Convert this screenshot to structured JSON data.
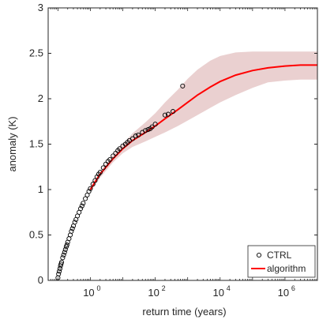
{
  "chart_data": {
    "type": "scatter",
    "title": "",
    "xlabel": "return time (years)",
    "ylabel": "anomaly (K)",
    "x_scale": "log",
    "xlim": [
      0.05,
      10000000.0
    ],
    "ylim": [
      0,
      3
    ],
    "x_ticks": [
      {
        "value": 1,
        "base": "10",
        "exp": "0"
      },
      {
        "value": 100,
        "base": "10",
        "exp": "2"
      },
      {
        "value": 10000,
        "base": "10",
        "exp": "4"
      },
      {
        "value": 1000000,
        "base": "10",
        "exp": "6"
      }
    ],
    "y_ticks": [
      {
        "value": 0,
        "label": "0"
      },
      {
        "value": 0.5,
        "label": "0.5"
      },
      {
        "value": 1,
        "label": "1"
      },
      {
        "value": 1.5,
        "label": "1.5"
      },
      {
        "value": 2,
        "label": "2"
      },
      {
        "value": 2.5,
        "label": "2.5"
      },
      {
        "value": 3,
        "label": "3"
      }
    ],
    "grid": false,
    "legend_position": "bottom-right",
    "series": [
      {
        "name": "CTRL",
        "style": "open-circle",
        "color": "#000000",
        "x": [
          0.1,
          0.105,
          0.11,
          0.115,
          0.12,
          0.125,
          0.13,
          0.14,
          0.15,
          0.16,
          0.17,
          0.18,
          0.19,
          0.2,
          0.22,
          0.24,
          0.26,
          0.28,
          0.3,
          0.33,
          0.36,
          0.4,
          0.45,
          0.5,
          0.55,
          0.6,
          0.7,
          0.8,
          0.9,
          1.0,
          1.2,
          1.4,
          1.6,
          1.8,
          2.0,
          2.5,
          3,
          3.5,
          4,
          5,
          6,
          7,
          8,
          10,
          12,
          14,
          16,
          20,
          25,
          30,
          40,
          50,
          60,
          70,
          80,
          100,
          200,
          250,
          350,
          700
        ],
        "y": [
          0.03,
          0.07,
          0.1,
          0.13,
          0.16,
          0.18,
          0.2,
          0.25,
          0.28,
          0.31,
          0.34,
          0.37,
          0.39,
          0.42,
          0.46,
          0.5,
          0.54,
          0.57,
          0.6,
          0.64,
          0.67,
          0.71,
          0.75,
          0.79,
          0.82,
          0.85,
          0.9,
          0.94,
          0.98,
          1.01,
          1.06,
          1.1,
          1.14,
          1.17,
          1.19,
          1.24,
          1.28,
          1.31,
          1.33,
          1.37,
          1.4,
          1.43,
          1.45,
          1.48,
          1.5,
          1.52,
          1.54,
          1.56,
          1.59,
          1.6,
          1.63,
          1.65,
          1.66,
          1.67,
          1.69,
          1.72,
          1.82,
          1.83,
          1.86,
          2.14
        ]
      },
      {
        "name": "algorithm",
        "style": "line",
        "color": "#ff0000",
        "x": [
          1,
          2,
          5,
          10,
          20,
          50,
          100,
          200,
          500,
          1000,
          2000,
          5000,
          10000,
          30000,
          100000,
          300000,
          1000000,
          3000000,
          10000000
        ],
        "y": [
          1.0,
          1.17,
          1.34,
          1.45,
          1.54,
          1.63,
          1.7,
          1.78,
          1.88,
          1.96,
          2.04,
          2.13,
          2.19,
          2.26,
          2.31,
          2.34,
          2.36,
          2.37,
          2.37
        ],
        "band_upper": [
          1.03,
          1.2,
          1.38,
          1.5,
          1.62,
          1.74,
          1.84,
          1.96,
          2.1,
          2.22,
          2.32,
          2.42,
          2.47,
          2.51,
          2.52,
          2.52,
          2.52,
          2.52,
          2.52
        ],
        "band_lower": [
          0.97,
          1.13,
          1.3,
          1.4,
          1.47,
          1.53,
          1.58,
          1.63,
          1.7,
          1.76,
          1.82,
          1.9,
          1.96,
          2.04,
          2.12,
          2.18,
          2.2,
          2.21,
          2.21
        ],
        "band_color": "#ead0d0"
      }
    ]
  },
  "legend": {
    "ctrl_label": "CTRL",
    "algorithm_label": "algorithm"
  }
}
